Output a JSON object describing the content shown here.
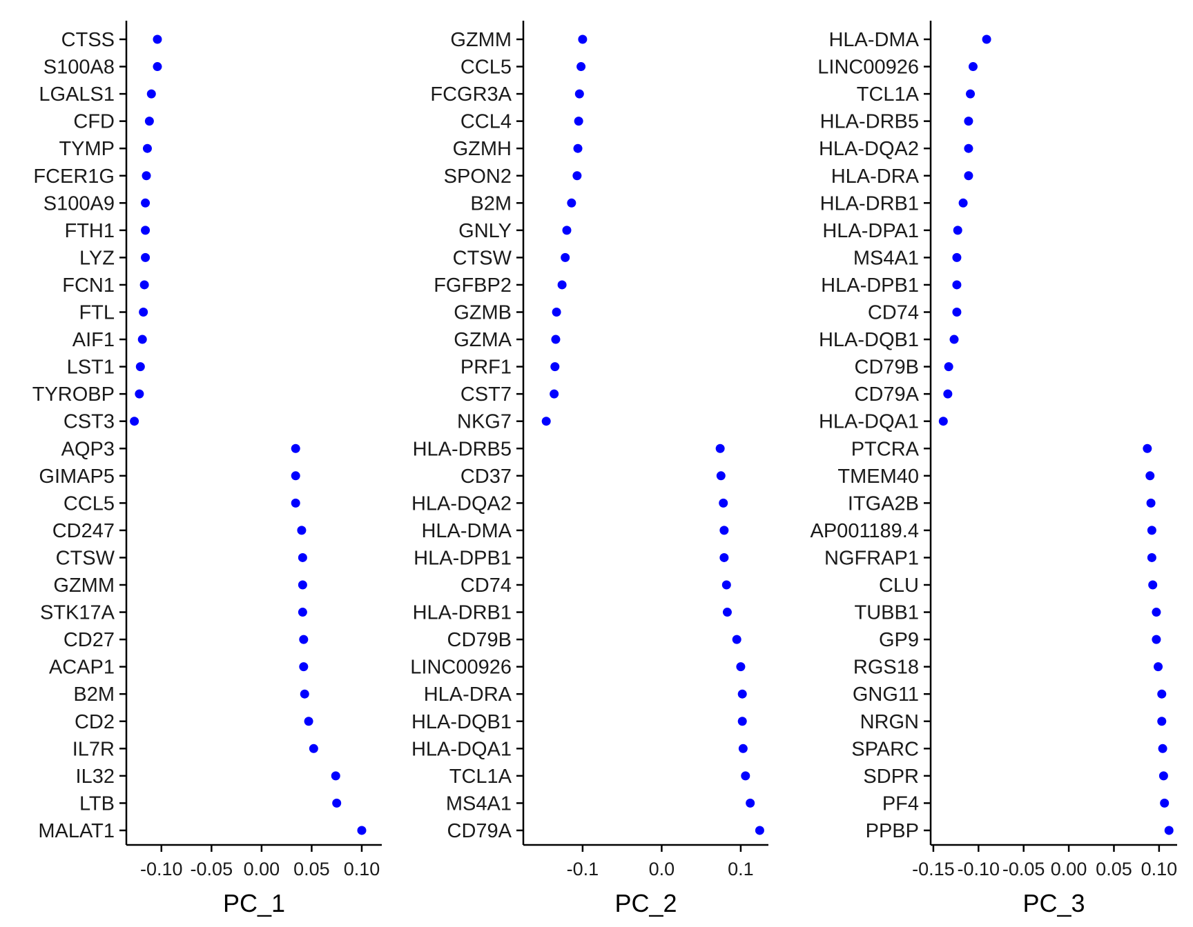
{
  "chart_data": [
    {
      "type": "scatter",
      "xlabel": "PC_1",
      "xlim": [
        -0.135,
        0.12
      ],
      "xticks": [
        -0.1,
        -0.05,
        0.0,
        0.05,
        0.1
      ],
      "xtick_labels": [
        "-0.10",
        "-0.05",
        "0.00",
        "0.05",
        "0.10"
      ],
      "point_color": "#0000ff",
      "genes": [
        "CTSS",
        "S100A8",
        "LGALS1",
        "CFD",
        "TYMP",
        "FCER1G",
        "S100A9",
        "FTH1",
        "LYZ",
        "FCN1",
        "FTL",
        "AIF1",
        "LST1",
        "TYROBP",
        "CST3",
        "AQP3",
        "GIMAP5",
        "CCL5",
        "CD247",
        "CTSW",
        "GZMM",
        "STK17A",
        "CD27",
        "ACAP1",
        "B2M",
        "CD2",
        "IL7R",
        "IL32",
        "LTB",
        "MALAT1"
      ],
      "values": [
        -0.104,
        -0.104,
        -0.11,
        -0.112,
        -0.114,
        -0.115,
        -0.116,
        -0.116,
        -0.116,
        -0.117,
        -0.118,
        -0.119,
        -0.121,
        -0.122,
        -0.127,
        0.034,
        0.034,
        0.034,
        0.04,
        0.041,
        0.041,
        0.041,
        0.042,
        0.042,
        0.043,
        0.047,
        0.052,
        0.074,
        0.075,
        0.1
      ]
    },
    {
      "type": "scatter",
      "xlabel": "PC_2",
      "xlim": [
        -0.175,
        0.135
      ],
      "xticks": [
        -0.1,
        0.0,
        0.1
      ],
      "xtick_labels": [
        "-0.1",
        "0.0",
        "0.1"
      ],
      "point_color": "#0000ff",
      "genes": [
        "GZMM",
        "CCL5",
        "FCGR3A",
        "CCL4",
        "GZMH",
        "SPON2",
        "B2M",
        "GNLY",
        "CTSW",
        "FGFBP2",
        "GZMB",
        "GZMA",
        "PRF1",
        "CST7",
        "NKG7",
        "HLA-DRB5",
        "CD37",
        "HLA-DQA2",
        "HLA-DMA",
        "HLA-DPB1",
        "CD74",
        "HLA-DRB1",
        "CD79B",
        "LINC00926",
        "HLA-DRA",
        "HLA-DQB1",
        "HLA-DQA1",
        "TCL1A",
        "MS4A1",
        "CD79A"
      ],
      "values": [
        -0.1,
        -0.102,
        -0.104,
        -0.105,
        -0.106,
        -0.107,
        -0.114,
        -0.12,
        -0.122,
        -0.126,
        -0.133,
        -0.134,
        -0.135,
        -0.136,
        -0.146,
        0.074,
        0.075,
        0.078,
        0.079,
        0.079,
        0.082,
        0.083,
        0.095,
        0.1,
        0.102,
        0.102,
        0.103,
        0.106,
        0.112,
        0.124
      ]
    },
    {
      "type": "scatter",
      "xlabel": "PC_3",
      "xlim": [
        -0.153,
        0.12
      ],
      "xticks": [
        -0.15,
        -0.1,
        -0.05,
        0.0,
        0.05,
        0.1
      ],
      "xtick_labels": [
        "-0.15",
        "-0.10",
        "-0.05",
        "0.00",
        "0.05",
        "0.10"
      ],
      "point_color": "#0000ff",
      "genes": [
        "HLA-DMA",
        "LINC00926",
        "TCL1A",
        "HLA-DRB5",
        "HLA-DQA2",
        "HLA-DRA",
        "HLA-DRB1",
        "HLA-DPA1",
        "MS4A1",
        "HLA-DPB1",
        "CD74",
        "HLA-DQB1",
        "CD79B",
        "CD79A",
        "HLA-DQA1",
        "PTCRA",
        "TMEM40",
        "ITGA2B",
        "AP001189.4",
        "NGFRAP1",
        "CLU",
        "TUBB1",
        "GP9",
        "RGS18",
        "GNG11",
        "NRGN",
        "SPARC",
        "SDPR",
        "PF4",
        "PPBP"
      ],
      "values": [
        -0.091,
        -0.106,
        -0.109,
        -0.111,
        -0.111,
        -0.111,
        -0.117,
        -0.123,
        -0.124,
        -0.124,
        -0.124,
        -0.127,
        -0.133,
        -0.134,
        -0.139,
        0.087,
        0.09,
        0.091,
        0.092,
        0.092,
        0.093,
        0.097,
        0.097,
        0.099,
        0.103,
        0.103,
        0.104,
        0.105,
        0.106,
        0.111
      ]
    }
  ]
}
